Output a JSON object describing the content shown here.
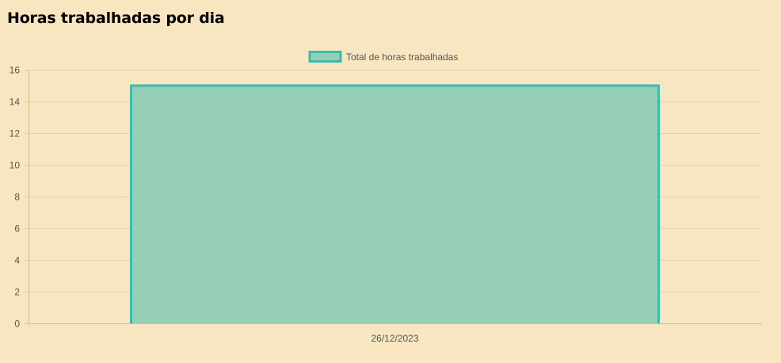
{
  "page": {
    "title": "Horas trabalhadas por dia"
  },
  "chart_data": {
    "type": "bar",
    "categories": [
      "26/12/2023"
    ],
    "series": [
      {
        "name": "Total de horas trabalhadas",
        "values": [
          15
        ],
        "fill_color": "#95cfb6",
        "border_color": "#3cbab0"
      }
    ],
    "title": "",
    "xlabel": "",
    "ylabel": "",
    "ylim": [
      0,
      16
    ],
    "y_ticks": [
      0,
      2,
      4,
      6,
      8,
      10,
      12,
      14,
      16
    ],
    "grid": true,
    "legend_position": "top-center",
    "colors": {
      "background": "#f7e6c0",
      "grid": "#e2d2ab",
      "axis": "#cdbc95",
      "tick_text": "#555555"
    }
  }
}
